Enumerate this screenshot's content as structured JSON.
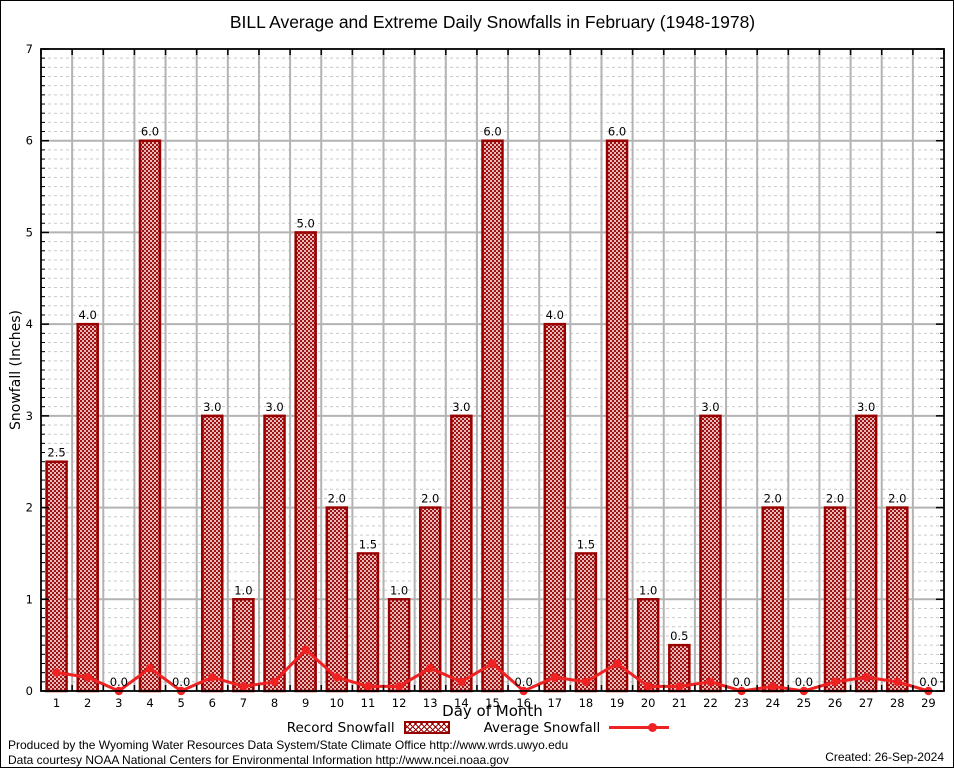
{
  "title": "BILL Average and Extreme Daily Snowfalls in February (1948-1978)",
  "chart_data": {
    "type": "bar",
    "categories": [
      1,
      2,
      3,
      4,
      5,
      6,
      7,
      8,
      9,
      10,
      11,
      12,
      13,
      14,
      15,
      16,
      17,
      18,
      19,
      20,
      21,
      22,
      23,
      24,
      25,
      26,
      27,
      28,
      29
    ],
    "series": [
      {
        "name": "Record Snowfall",
        "type": "bar",
        "values": [
          2.5,
          4.0,
          0.0,
          6.0,
          0.0,
          3.0,
          1.0,
          3.0,
          5.0,
          2.0,
          1.5,
          1.0,
          2.0,
          3.0,
          6.0,
          0.0,
          4.0,
          1.5,
          6.0,
          1.0,
          0.5,
          3.0,
          0.0,
          2.0,
          0.0,
          2.0,
          3.0,
          2.0,
          0.0
        ]
      },
      {
        "name": "Average Snowfall",
        "type": "line",
        "values": [
          0.2,
          0.15,
          0.0,
          0.25,
          0.0,
          0.15,
          0.05,
          0.1,
          0.45,
          0.15,
          0.05,
          0.05,
          0.25,
          0.1,
          0.3,
          0.0,
          0.15,
          0.1,
          0.3,
          0.05,
          0.05,
          0.1,
          0.0,
          0.05,
          0.0,
          0.1,
          0.15,
          0.1,
          0.0
        ]
      }
    ],
    "title": "BILL Average and Extreme Daily Snowfalls in February (1948-1978)",
    "xlabel": "Day of Month",
    "ylabel": "Snowfall (Inches)",
    "ylim": [
      0,
      7
    ],
    "yticks": [
      0,
      1,
      2,
      3,
      4,
      5,
      6,
      7
    ],
    "bar_value_labels_decimals": 1,
    "grid": "major solid gray, minor dashed light-gray",
    "legend_position": "bottom",
    "colors": {
      "bar_border": "#990000",
      "bar_hatch": "#990000",
      "bar_background": "#ffffff",
      "average_line": "#ee2222",
      "grid_major": "#b3b3b3",
      "grid_minor": "#c9c9c9",
      "axis": "#000000",
      "text": "#000000"
    }
  },
  "footer": {
    "line1": "Produced by the Wyoming Water Resources Data System/State Climate Office http://www.wrds.uwyo.edu",
    "line2": "Data courtesy NOAA National Centers for Environmental Information http://www.ncei.noaa.gov",
    "created": "Created: 26-Sep-2024"
  }
}
